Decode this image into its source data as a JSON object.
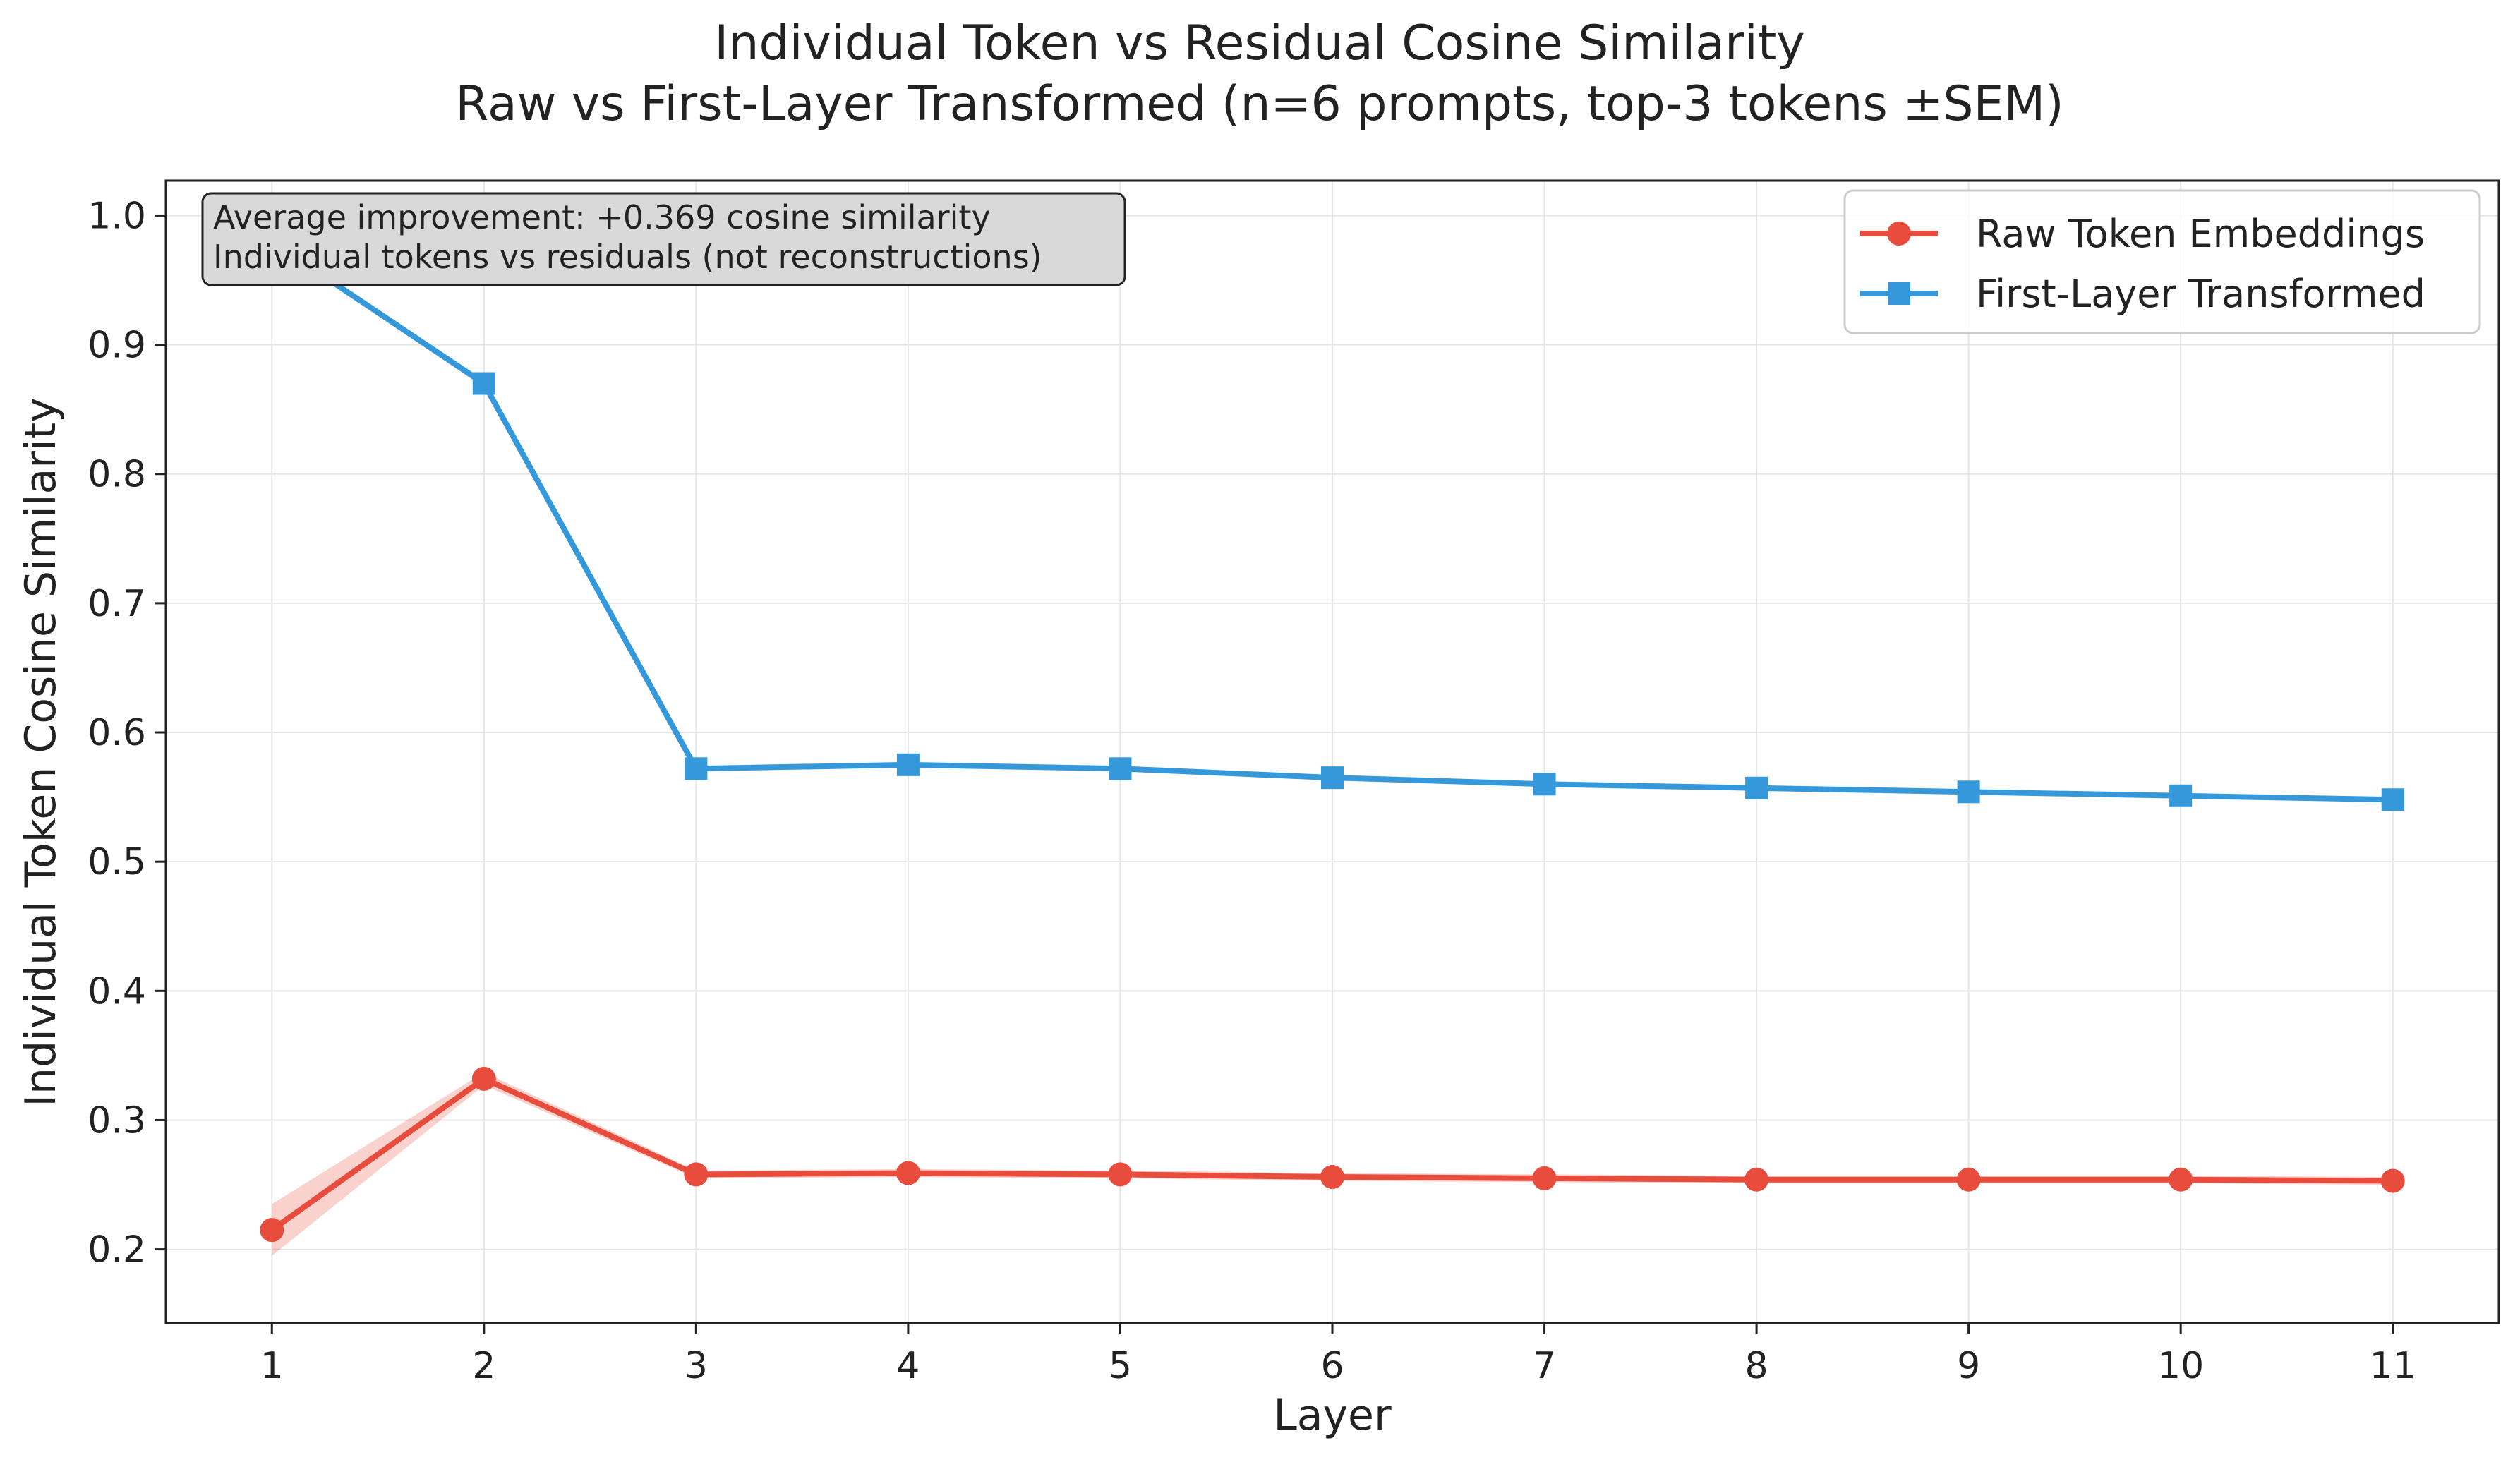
{
  "chart_data": {
    "type": "line",
    "title": "Individual Token vs Residual Cosine Similarity",
    "subtitle": "Raw vs First-Layer Transformed (n=6 prompts, top-3 tokens ±SEM)",
    "xlabel": "Layer",
    "ylabel": "Individual Token Cosine Similarity",
    "x": [
      1,
      2,
      3,
      4,
      5,
      6,
      7,
      8,
      9,
      10,
      11
    ],
    "xlim": [
      0.5,
      11.5
    ],
    "ylim": [
      0.143,
      1.027
    ],
    "y_ticks": [
      0.2,
      0.3,
      0.4,
      0.5,
      0.6,
      0.7,
      0.8,
      0.9,
      1.0
    ],
    "y_tick_labels": [
      "0.2",
      "0.3",
      "0.4",
      "0.5",
      "0.6",
      "0.7",
      "0.8",
      "0.9",
      "1.0"
    ],
    "x_tick_labels": [
      "1",
      "2",
      "3",
      "4",
      "5",
      "6",
      "7",
      "8",
      "9",
      "10",
      "11"
    ],
    "grid": true,
    "legend_position": "top-right",
    "series": [
      {
        "name": "Raw Token Embeddings",
        "color": "#e74c3c",
        "marker": "circle",
        "values": [
          0.215,
          0.332,
          0.258,
          0.259,
          0.258,
          0.256,
          0.255,
          0.254,
          0.254,
          0.254,
          0.253
        ],
        "sem": [
          0.02,
          0.005,
          0.003,
          0.003,
          0.003,
          0.003,
          0.003,
          0.003,
          0.003,
          0.003,
          0.003
        ]
      },
      {
        "name": "First-Layer Transformed",
        "color": "#3498db",
        "marker": "square",
        "values": [
          0.98,
          0.87,
          0.572,
          0.575,
          0.572,
          0.565,
          0.56,
          0.557,
          0.554,
          0.551,
          0.548
        ],
        "sem": [
          0.002,
          0.003,
          0.002,
          0.002,
          0.002,
          0.002,
          0.002,
          0.002,
          0.002,
          0.002,
          0.002
        ]
      }
    ],
    "annotation": {
      "lines": [
        "Average improvement: +0.369 cosine similarity",
        "Individual tokens vs residuals (not reconstructions)"
      ]
    }
  }
}
